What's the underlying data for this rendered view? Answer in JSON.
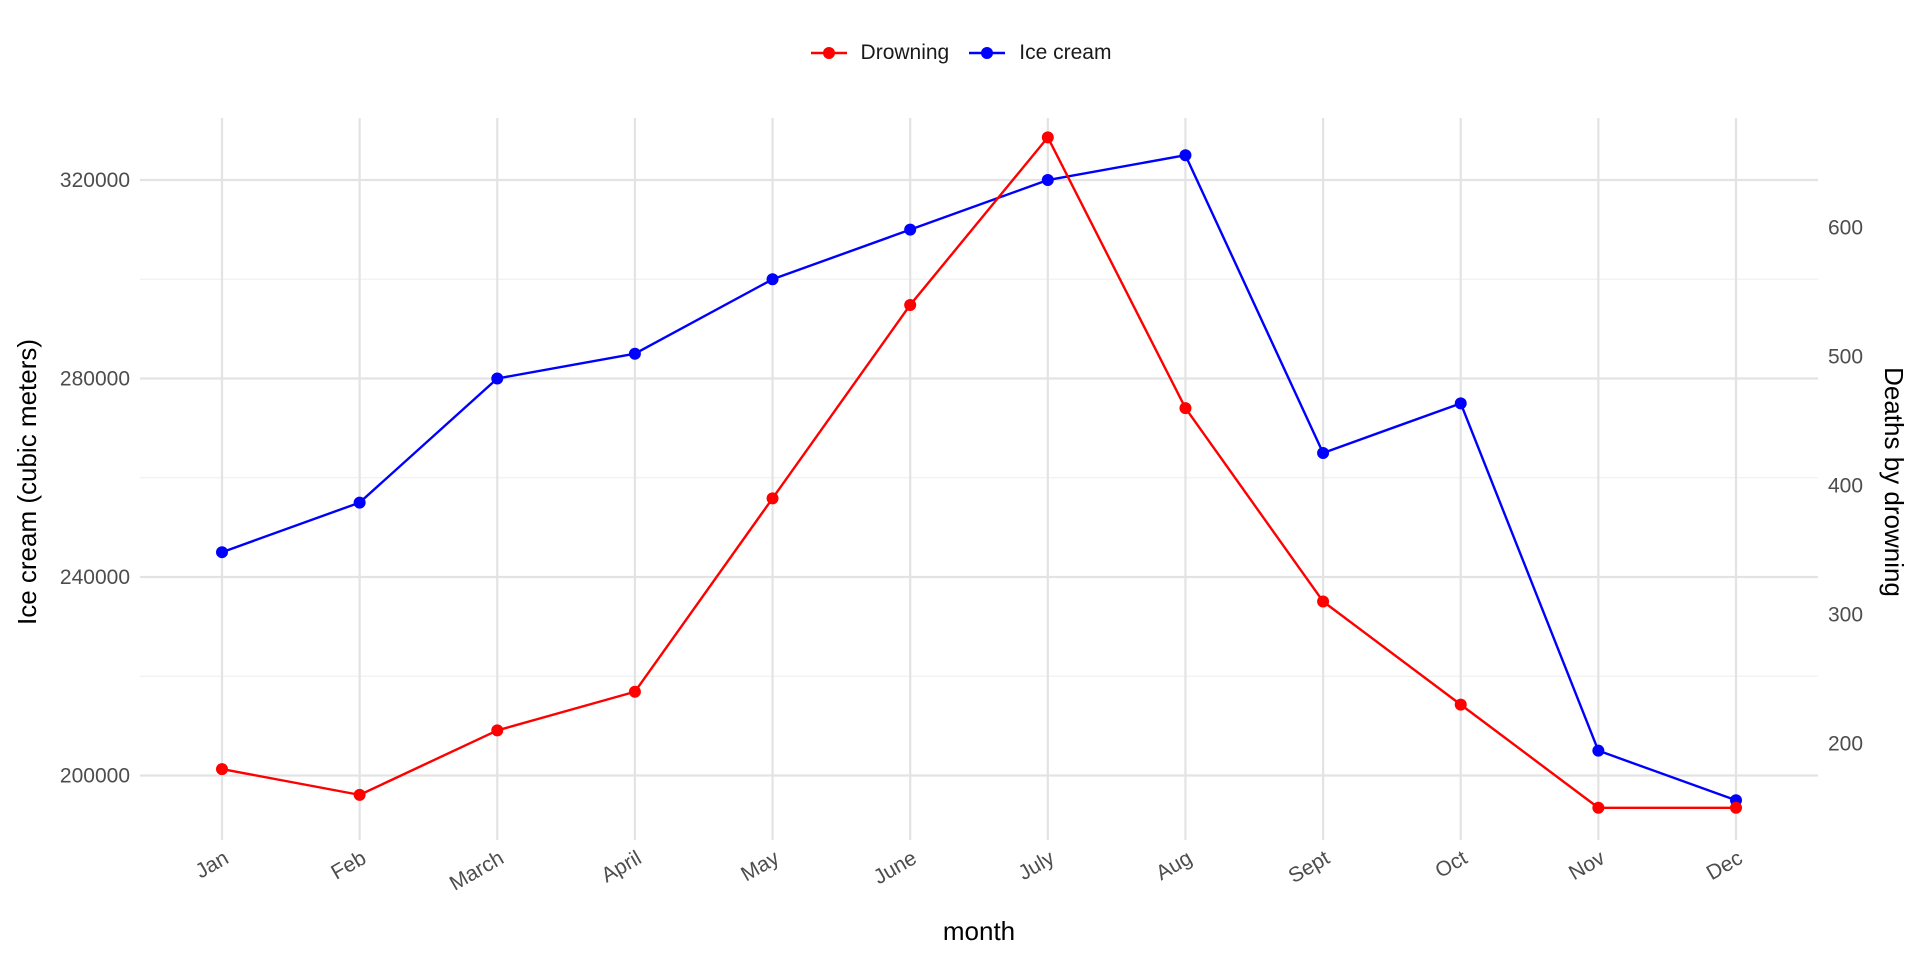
{
  "chart_data": {
    "type": "line",
    "title": "",
    "xlabel": "month",
    "ylabel": "Ice cream (cubic meters)",
    "y2label": "Deaths by drowning",
    "categories": [
      "Jan",
      "Feb",
      "March",
      "April",
      "May",
      "June",
      "July",
      "Aug",
      "Sept",
      "Oct",
      "Nov",
      "Dec"
    ],
    "ylim": [
      187000,
      332500
    ],
    "yticks": [
      200000,
      240000,
      280000,
      320000
    ],
    "y2lim": [
      125,
      685
    ],
    "y2ticks": [
      200,
      300,
      400,
      500,
      600
    ],
    "legend_position": "top",
    "grid": true,
    "series": [
      {
        "name": "Drowning",
        "color": "#ff0000",
        "axis": "right",
        "values": [
          180,
          160,
          210,
          240,
          390,
          540,
          670,
          460,
          310,
          230,
          150,
          150
        ]
      },
      {
        "name": "Ice cream",
        "color": "#0000ff",
        "axis": "left",
        "values": [
          245000,
          255000,
          280000,
          285000,
          300000,
          310000,
          320000,
          325000,
          265000,
          275000,
          205000,
          195000
        ]
      }
    ]
  }
}
